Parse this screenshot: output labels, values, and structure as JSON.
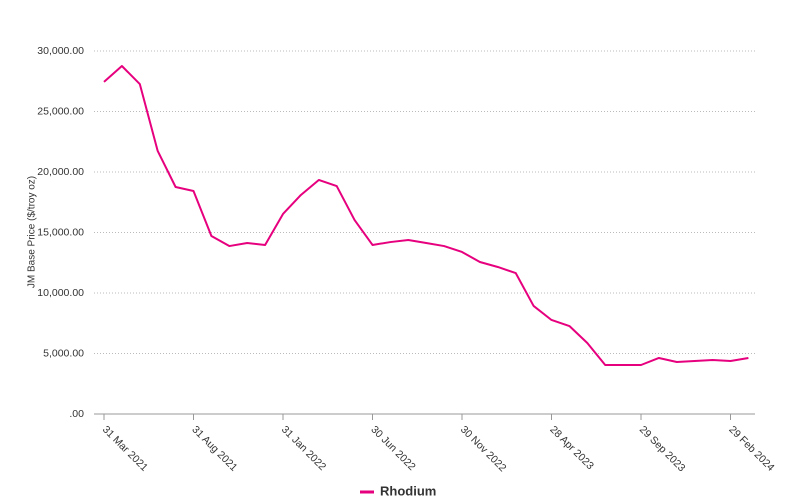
{
  "chart_data": {
    "type": "line",
    "y_label": "JM Base Price ($/troy oz)",
    "categories": [
      "31 Mar 2021",
      null,
      null,
      null,
      null,
      "31 Aug 2021",
      null,
      null,
      null,
      null,
      "31 Jan 2022",
      null,
      null,
      null,
      null,
      "30 Jun 2022",
      null,
      null,
      null,
      null,
      "30 Nov 2022",
      null,
      null,
      null,
      null,
      "28 Apr 2023",
      null,
      null,
      null,
      null,
      "29 Sep 2023",
      null,
      null,
      null,
      null,
      "29 Feb 2024",
      null
    ],
    "series": [
      {
        "name": "Rhodium",
        "color": "#e6007e",
        "values": [
          27450,
          28760,
          27270,
          21740,
          18760,
          18430,
          14710,
          13880,
          14130,
          13970,
          16530,
          18100,
          19340,
          18840,
          16030,
          13970,
          14210,
          14380,
          14130,
          13880,
          13390,
          12560,
          12150,
          11650,
          8930,
          7770,
          7270,
          5870,
          4050,
          4050,
          4050,
          4630,
          4300,
          4380,
          4460,
          4380,
          4630
        ]
      }
    ],
    "ylim": [
      0,
      30000
    ],
    "yticks": [
      {
        "value": 0,
        "label": ".00"
      },
      {
        "value": 5000,
        "label": "5,000.00"
      },
      {
        "value": 10000,
        "label": "10,000.00"
      },
      {
        "value": 15000,
        "label": "15,000.00"
      },
      {
        "value": 20000,
        "label": "20,000.00"
      },
      {
        "value": 25000,
        "label": "25,000.00"
      },
      {
        "value": 30000,
        "label": "30,000.00"
      }
    ],
    "grid": true,
    "legend": "bottom"
  }
}
